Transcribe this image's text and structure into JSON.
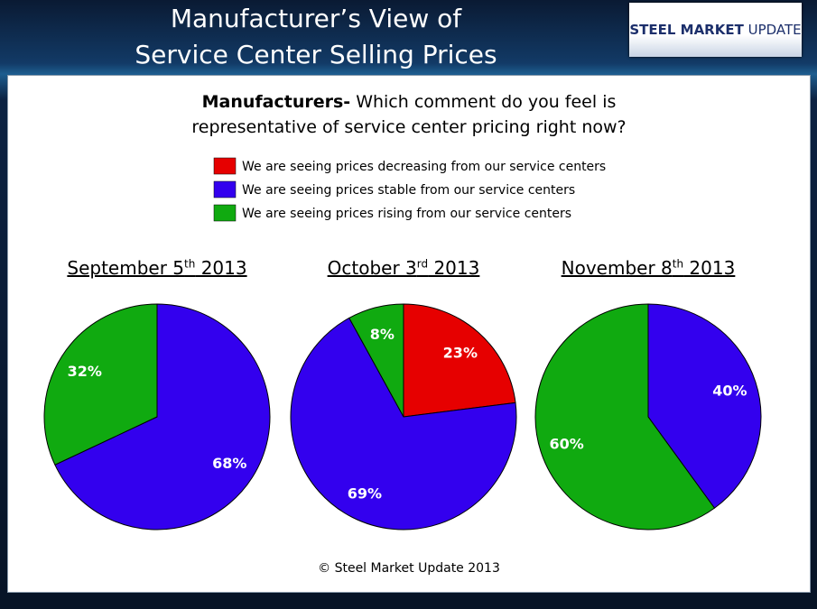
{
  "header": {
    "title": [
      "Manufacturer’s View of",
      "Service Center Selling Prices"
    ],
    "logo": [
      "STEEL MARKET",
      "UPDATE"
    ]
  },
  "question": {
    "bold": "Manufacturers-",
    "lines": [
      "Which comment do you feel is",
      "representative of service center pricing right now?"
    ]
  },
  "legend": [
    {
      "label": "We are seeing prices decreasing from our service centers",
      "color": "#e60000"
    },
    {
      "label": "We are seeing prices stable from our service centers",
      "color": "#3300ee"
    },
    {
      "label": "We are seeing prices rising from our service centers",
      "color": "#10aa10"
    }
  ],
  "chart_data": [
    {
      "type": "pie",
      "title": [
        "September 5",
        "th",
        " 2013"
      ],
      "values": [
        68,
        32
      ],
      "value_labels": [
        "68%",
        "32%"
      ],
      "colors": [
        "#3300ee",
        "#10aa10"
      ]
    },
    {
      "type": "pie",
      "title": [
        "October 3",
        "rd",
        " 2013"
      ],
      "values": [
        23,
        69,
        8
      ],
      "value_labels": [
        "23%",
        "69%",
        "8%"
      ],
      "colors": [
        "#e60000",
        "#3300ee",
        "#10aa10"
      ]
    },
    {
      "type": "pie",
      "title": [
        "November 8",
        "th",
        " 2013"
      ],
      "values": [
        40,
        60
      ],
      "value_labels": [
        "40%",
        "60%"
      ],
      "colors": [
        "#3300ee",
        "#10aa10"
      ]
    }
  ],
  "footer": "© Steel Market Update 2013"
}
